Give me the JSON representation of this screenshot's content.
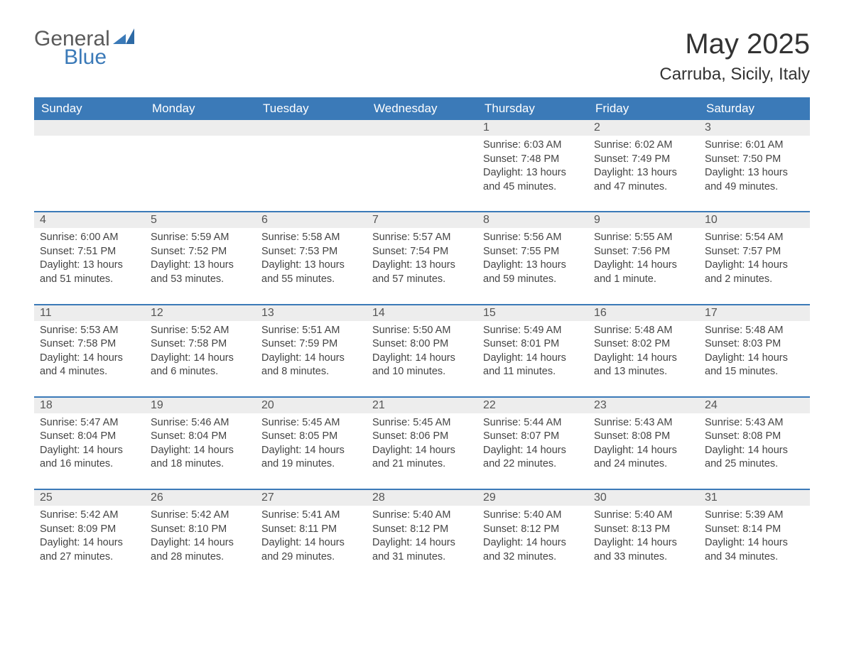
{
  "logo": {
    "general": "General",
    "blue": "Blue"
  },
  "title": "May 2025",
  "location": "Carruba, Sicily, Italy",
  "brand_color": "#3b7ab8",
  "header_bg": "#3b7ab8",
  "header_fg": "#ffffff",
  "daynum_bg": "#ededed",
  "text_color": "#444444",
  "days_of_week": [
    "Sunday",
    "Monday",
    "Tuesday",
    "Wednesday",
    "Thursday",
    "Friday",
    "Saturday"
  ],
  "weeks": [
    [
      null,
      null,
      null,
      null,
      {
        "n": "1",
        "sunrise": "Sunrise: 6:03 AM",
        "sunset": "Sunset: 7:48 PM",
        "daylight": "Daylight: 13 hours and 45 minutes."
      },
      {
        "n": "2",
        "sunrise": "Sunrise: 6:02 AM",
        "sunset": "Sunset: 7:49 PM",
        "daylight": "Daylight: 13 hours and 47 minutes."
      },
      {
        "n": "3",
        "sunrise": "Sunrise: 6:01 AM",
        "sunset": "Sunset: 7:50 PM",
        "daylight": "Daylight: 13 hours and 49 minutes."
      }
    ],
    [
      {
        "n": "4",
        "sunrise": "Sunrise: 6:00 AM",
        "sunset": "Sunset: 7:51 PM",
        "daylight": "Daylight: 13 hours and 51 minutes."
      },
      {
        "n": "5",
        "sunrise": "Sunrise: 5:59 AM",
        "sunset": "Sunset: 7:52 PM",
        "daylight": "Daylight: 13 hours and 53 minutes."
      },
      {
        "n": "6",
        "sunrise": "Sunrise: 5:58 AM",
        "sunset": "Sunset: 7:53 PM",
        "daylight": "Daylight: 13 hours and 55 minutes."
      },
      {
        "n": "7",
        "sunrise": "Sunrise: 5:57 AM",
        "sunset": "Sunset: 7:54 PM",
        "daylight": "Daylight: 13 hours and 57 minutes."
      },
      {
        "n": "8",
        "sunrise": "Sunrise: 5:56 AM",
        "sunset": "Sunset: 7:55 PM",
        "daylight": "Daylight: 13 hours and 59 minutes."
      },
      {
        "n": "9",
        "sunrise": "Sunrise: 5:55 AM",
        "sunset": "Sunset: 7:56 PM",
        "daylight": "Daylight: 14 hours and 1 minute."
      },
      {
        "n": "10",
        "sunrise": "Sunrise: 5:54 AM",
        "sunset": "Sunset: 7:57 PM",
        "daylight": "Daylight: 14 hours and 2 minutes."
      }
    ],
    [
      {
        "n": "11",
        "sunrise": "Sunrise: 5:53 AM",
        "sunset": "Sunset: 7:58 PM",
        "daylight": "Daylight: 14 hours and 4 minutes."
      },
      {
        "n": "12",
        "sunrise": "Sunrise: 5:52 AM",
        "sunset": "Sunset: 7:58 PM",
        "daylight": "Daylight: 14 hours and 6 minutes."
      },
      {
        "n": "13",
        "sunrise": "Sunrise: 5:51 AM",
        "sunset": "Sunset: 7:59 PM",
        "daylight": "Daylight: 14 hours and 8 minutes."
      },
      {
        "n": "14",
        "sunrise": "Sunrise: 5:50 AM",
        "sunset": "Sunset: 8:00 PM",
        "daylight": "Daylight: 14 hours and 10 minutes."
      },
      {
        "n": "15",
        "sunrise": "Sunrise: 5:49 AM",
        "sunset": "Sunset: 8:01 PM",
        "daylight": "Daylight: 14 hours and 11 minutes."
      },
      {
        "n": "16",
        "sunrise": "Sunrise: 5:48 AM",
        "sunset": "Sunset: 8:02 PM",
        "daylight": "Daylight: 14 hours and 13 minutes."
      },
      {
        "n": "17",
        "sunrise": "Sunrise: 5:48 AM",
        "sunset": "Sunset: 8:03 PM",
        "daylight": "Daylight: 14 hours and 15 minutes."
      }
    ],
    [
      {
        "n": "18",
        "sunrise": "Sunrise: 5:47 AM",
        "sunset": "Sunset: 8:04 PM",
        "daylight": "Daylight: 14 hours and 16 minutes."
      },
      {
        "n": "19",
        "sunrise": "Sunrise: 5:46 AM",
        "sunset": "Sunset: 8:04 PM",
        "daylight": "Daylight: 14 hours and 18 minutes."
      },
      {
        "n": "20",
        "sunrise": "Sunrise: 5:45 AM",
        "sunset": "Sunset: 8:05 PM",
        "daylight": "Daylight: 14 hours and 19 minutes."
      },
      {
        "n": "21",
        "sunrise": "Sunrise: 5:45 AM",
        "sunset": "Sunset: 8:06 PM",
        "daylight": "Daylight: 14 hours and 21 minutes."
      },
      {
        "n": "22",
        "sunrise": "Sunrise: 5:44 AM",
        "sunset": "Sunset: 8:07 PM",
        "daylight": "Daylight: 14 hours and 22 minutes."
      },
      {
        "n": "23",
        "sunrise": "Sunrise: 5:43 AM",
        "sunset": "Sunset: 8:08 PM",
        "daylight": "Daylight: 14 hours and 24 minutes."
      },
      {
        "n": "24",
        "sunrise": "Sunrise: 5:43 AM",
        "sunset": "Sunset: 8:08 PM",
        "daylight": "Daylight: 14 hours and 25 minutes."
      }
    ],
    [
      {
        "n": "25",
        "sunrise": "Sunrise: 5:42 AM",
        "sunset": "Sunset: 8:09 PM",
        "daylight": "Daylight: 14 hours and 27 minutes."
      },
      {
        "n": "26",
        "sunrise": "Sunrise: 5:42 AM",
        "sunset": "Sunset: 8:10 PM",
        "daylight": "Daylight: 14 hours and 28 minutes."
      },
      {
        "n": "27",
        "sunrise": "Sunrise: 5:41 AM",
        "sunset": "Sunset: 8:11 PM",
        "daylight": "Daylight: 14 hours and 29 minutes."
      },
      {
        "n": "28",
        "sunrise": "Sunrise: 5:40 AM",
        "sunset": "Sunset: 8:12 PM",
        "daylight": "Daylight: 14 hours and 31 minutes."
      },
      {
        "n": "29",
        "sunrise": "Sunrise: 5:40 AM",
        "sunset": "Sunset: 8:12 PM",
        "daylight": "Daylight: 14 hours and 32 minutes."
      },
      {
        "n": "30",
        "sunrise": "Sunrise: 5:40 AM",
        "sunset": "Sunset: 8:13 PM",
        "daylight": "Daylight: 14 hours and 33 minutes."
      },
      {
        "n": "31",
        "sunrise": "Sunrise: 5:39 AM",
        "sunset": "Sunset: 8:14 PM",
        "daylight": "Daylight: 14 hours and 34 minutes."
      }
    ]
  ]
}
